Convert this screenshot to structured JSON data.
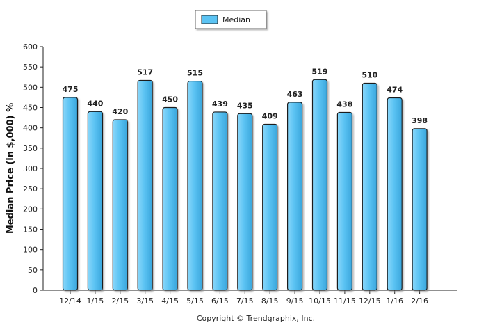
{
  "chart_data": {
    "type": "bar",
    "categories": [
      "12/14",
      "1/15",
      "2/15",
      "3/15",
      "4/15",
      "5/15",
      "6/15",
      "7/15",
      "8/15",
      "9/15",
      "10/15",
      "11/15",
      "12/15",
      "1/16",
      "2/16"
    ],
    "series": [
      {
        "name": "Median",
        "values": [
          475,
          440,
          420,
          517,
          450,
          515,
          439,
          435,
          409,
          463,
          519,
          438,
          510,
          474,
          398
        ]
      }
    ],
    "data_labels": [
      "475",
      "440",
      "420",
      "517",
      "450",
      "515",
      "439",
      "435",
      "409",
      "463",
      "519",
      "438",
      "510",
      "474",
      "398"
    ],
    "ylabel": "Median Price (in $,000) %",
    "xlabel": "",
    "ylim": [
      0,
      600
    ],
    "yticks": [
      0,
      50,
      100,
      150,
      200,
      250,
      300,
      350,
      400,
      450,
      500,
      550,
      600
    ],
    "grid": false,
    "legend_position": "top-center",
    "bar_color": "#5BC3F3",
    "bar_edge_color": "#1a1a1a",
    "copyright": "Copyright © Trendgraphix, Inc."
  }
}
